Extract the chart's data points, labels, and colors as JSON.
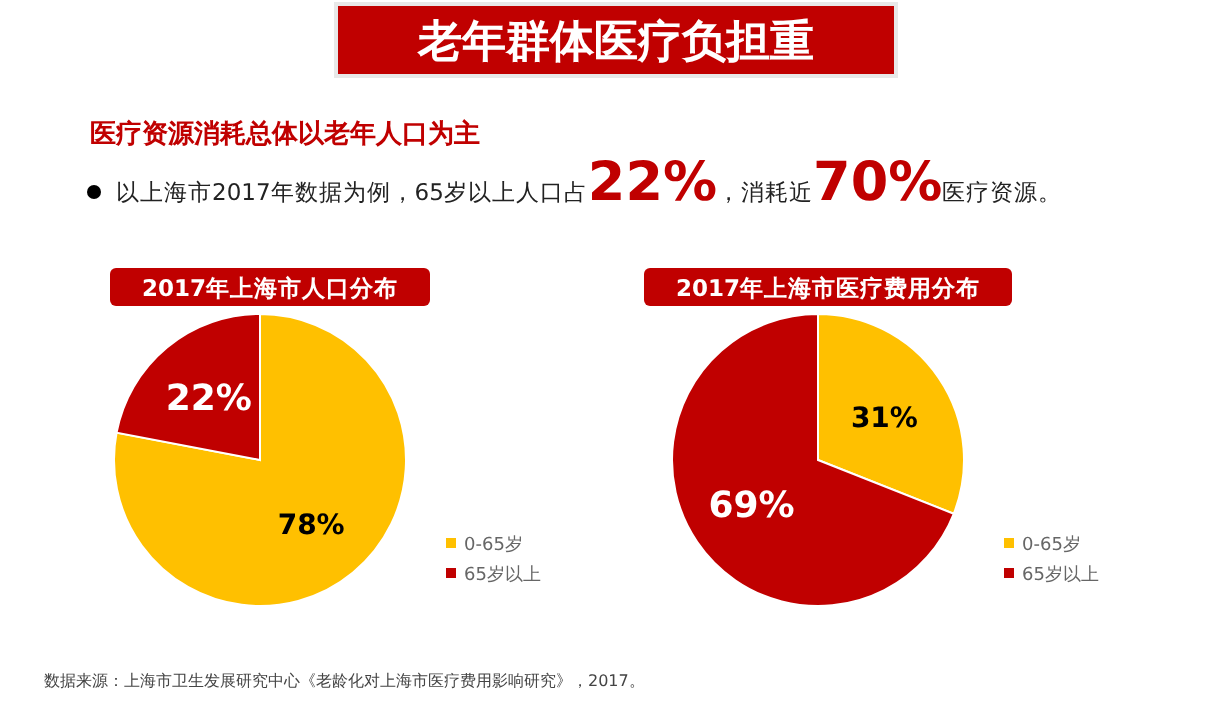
{
  "chart_data": [
    {
      "type": "other",
      "title": "老年群体医疗负担重",
      "subtitle": "医疗资源消耗总体以老年人口为主",
      "annotations": [
        "以上海市2017年数据为例，65岁以上人口占",
        "22%",
        "，消耗近",
        "70%",
        "医疗资源。",
        "数据来源：上海市卫生发展研究中心《老龄化对上海市医疗费用影响研究》，2017。"
      ]
    },
    {
      "type": "pie",
      "title": "2017年上海市人口分布",
      "categories": [
        "0-65岁",
        "65岁以上"
      ],
      "values": [
        78,
        22
      ],
      "colors": [
        "#ffc000",
        "#c00000"
      ],
      "value_labels": [
        "78%",
        "22%"
      ],
      "legend": "bottom right"
    },
    {
      "type": "pie",
      "title": "2017年上海市医疗费用分布",
      "categories": [
        "0-65岁",
        "65岁以上"
      ],
      "values": [
        31,
        69
      ],
      "colors": [
        "#ffc000",
        "#c00000"
      ],
      "value_labels": [
        "31%",
        "69%"
      ],
      "legend": "bottom right"
    }
  ]
}
